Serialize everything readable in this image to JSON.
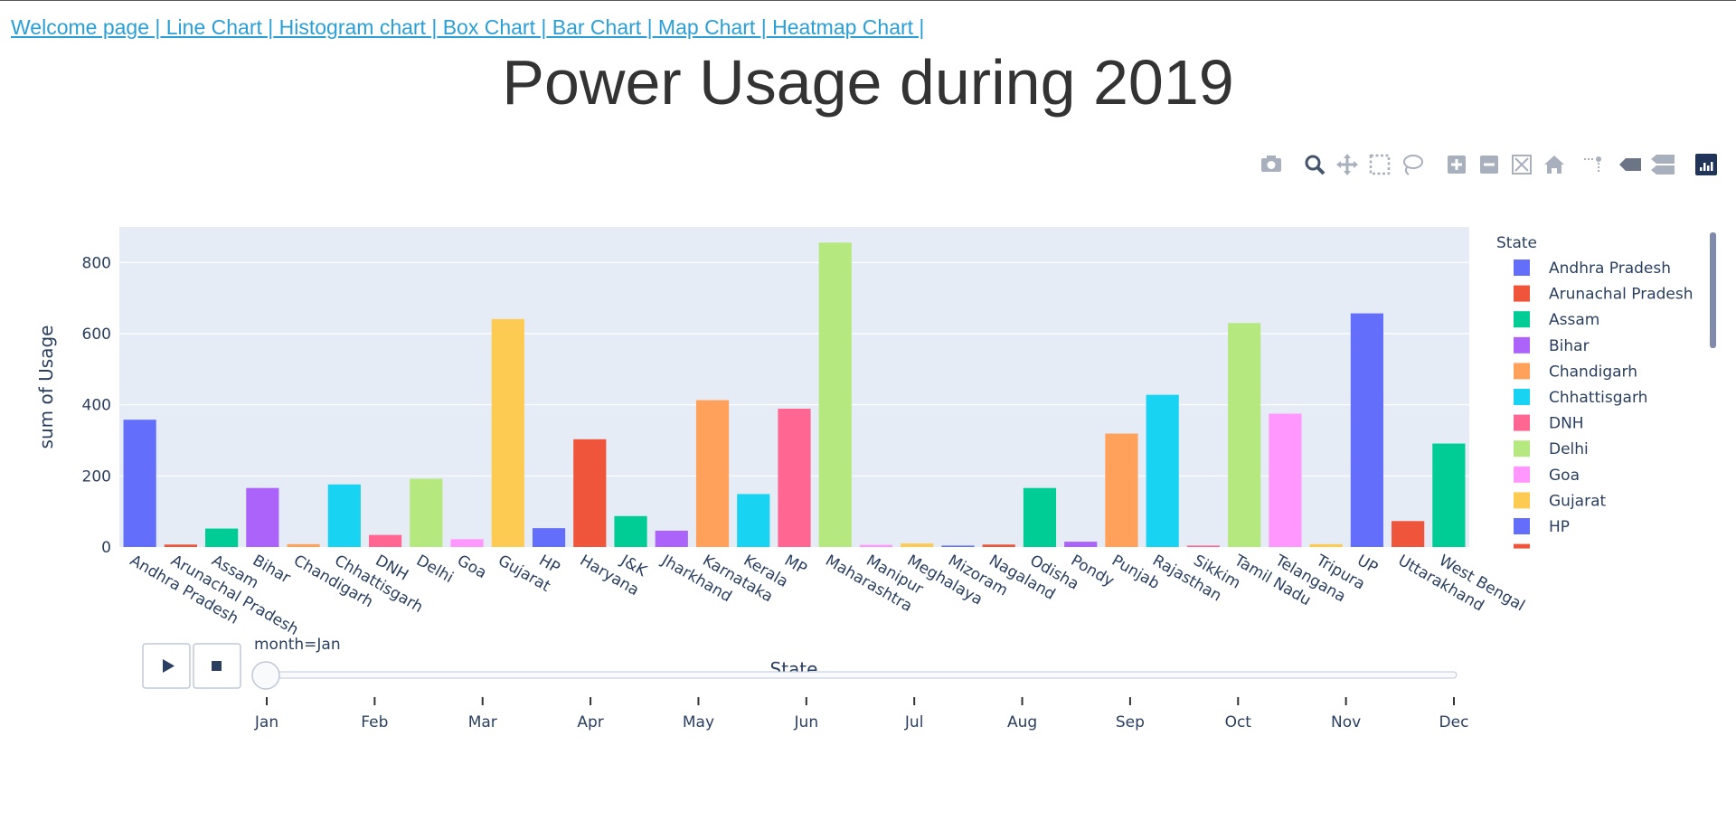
{
  "nav": {
    "links": [
      "Welcome page |",
      " Line Chart |",
      " Histogram chart |",
      " Box Chart |",
      " Bar Chart |",
      " Map Chart |",
      " Heatmap Chart |"
    ]
  },
  "page_title": "Power Usage during 2019",
  "modebar": {
    "icons": [
      "camera-icon",
      "zoom-icon",
      "pan-icon",
      "box-select-icon",
      "lasso-select-icon",
      "zoom-in-icon",
      "zoom-out-icon",
      "autoscale-icon",
      "reset-axes-icon",
      "spike-lines-icon",
      "hover-closest-icon",
      "hover-compare-icon",
      "plotly-logo-icon"
    ]
  },
  "colors": {
    "plot_bg": "#e5ecf6",
    "palette": [
      "#636efa",
      "#ef553b",
      "#00cc96",
      "#ab63fa",
      "#ffa15a",
      "#19d3f3",
      "#ff6692",
      "#b6e880",
      "#ff97ff",
      "#fecb52"
    ]
  },
  "chart_data": {
    "type": "bar",
    "title": "",
    "xlabel": "State",
    "ylabel": "sum of Usage",
    "ylim": [
      0,
      900
    ],
    "yticks": [
      0,
      200,
      400,
      600,
      800
    ],
    "grid": true,
    "legend_title": "State",
    "legend_placement": "right",
    "categories": [
      "Andhra Pradesh",
      "Arunachal Pradesh",
      "Assam",
      "Bihar",
      "Chandigarh",
      "Chhattisgarh",
      "DNH",
      "Delhi",
      "Goa",
      "Gujarat",
      "HP",
      "Haryana",
      "J&K",
      "Jharkhand",
      "Karnataka",
      "Kerala",
      "MP",
      "Maharashtra",
      "Manipur",
      "Meghalaya",
      "Mizoram",
      "Nagaland",
      "Odisha",
      "Pondy",
      "Punjab",
      "Rajasthan",
      "Sikkim",
      "Tamil Nadu",
      "Telangana",
      "Tripura",
      "UP",
      "Uttarakhand",
      "West Bengal"
    ],
    "values": [
      358,
      7,
      52,
      166,
      8,
      176,
      34,
      192,
      22,
      641,
      53,
      303,
      87,
      46,
      413,
      149,
      389,
      856,
      6,
      10,
      4,
      7,
      166,
      15,
      319,
      428,
      4,
      630,
      375,
      8,
      657,
      73,
      291
    ],
    "legend_entries": [
      "Andhra Pradesh",
      "Arunachal Pradesh",
      "Assam",
      "Bihar",
      "Chandigarh",
      "Chhattisgarh",
      "DNH",
      "Delhi",
      "Goa",
      "Gujarat",
      "HP"
    ],
    "slider": {
      "current_label": "month=Jan",
      "steps": [
        "Jan",
        "Feb",
        "Mar",
        "Apr",
        "May",
        "Jun",
        "Jul",
        "Aug",
        "Sep",
        "Oct",
        "Nov",
        "Dec"
      ],
      "active_index": 0
    }
  }
}
